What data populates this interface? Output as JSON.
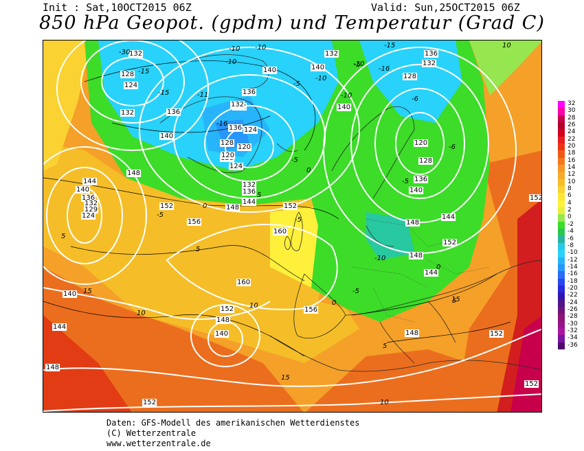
{
  "header": {
    "init": "Init : Sat,10OCT2015 06Z",
    "valid": "Valid: Sun,25OCT2015 06Z",
    "title": "850 hPa Geopot. (gpdm) und Temperatur (Grad C)"
  },
  "footer": {
    "line1": "Daten: GFS-Modell des amerikanischen Wetterdienstes",
    "line2": "(C) Wetterzentrale",
    "line3": "www.wetterzentrale.de"
  },
  "colorbar": {
    "levels": [
      "32",
      "30",
      "28",
      "26",
      "24",
      "22",
      "20",
      "18",
      "16",
      "14",
      "12",
      "10",
      "8",
      "6",
      "4",
      "2",
      "0",
      "-2",
      "-4",
      "-6",
      "-8",
      "-10",
      "-12",
      "-14",
      "-16",
      "-18",
      "-20",
      "-22",
      "-24",
      "-26",
      "-28",
      "-30",
      "-32",
      "-34",
      "-36"
    ],
    "colors": [
      "#ff00ff",
      "#ff00aa",
      "#c8004b",
      "#b4002d",
      "#d2001e",
      "#e61e1e",
      "#f03214",
      "#f05a14",
      "#f5781e",
      "#f59628",
      "#f5aa28",
      "#f5be28",
      "#fad232",
      "#ffe632",
      "#fff03c",
      "#e6f03c",
      "#96e650",
      "#3cdc28",
      "#28c850",
      "#28b4a0",
      "#28c8e6",
      "#28d2fa",
      "#28b4fa",
      "#2896fa",
      "#286efa",
      "#2846f0",
      "#2828dc",
      "#3214b4",
      "#50148c",
      "#6e1478",
      "#8c1473",
      "#96148c",
      "#aa14a0",
      "#7814a0",
      "#500a6e"
    ]
  },
  "map": {
    "geopotential_labels": [
      "132",
      "128",
      "124",
      "132",
      "136",
      "140",
      "136",
      "132",
      "140",
      "140",
      "136",
      "132",
      "128",
      "124",
      "120",
      "128",
      "124",
      "132",
      "120",
      "120",
      "128",
      "136",
      "148",
      "144",
      "140",
      "136",
      "132",
      "129",
      "124",
      "132",
      "136",
      "144",
      "140",
      "148",
      "152",
      "152",
      "156",
      "160",
      "160",
      "152",
      "148",
      "140",
      "144",
      "156",
      "148",
      "152",
      "152",
      "152",
      "152",
      "148",
      "140",
      "140",
      "144",
      "148",
      "152",
      "128",
      "132",
      "136",
      "148",
      "144"
    ],
    "temperature_labels": [
      "-30",
      "-15",
      "-10",
      "-10",
      "-10",
      "-15",
      "-16",
      "-15",
      "-11",
      "-5",
      "-10",
      "-10",
      "-16",
      "-5",
      "-10",
      "-5",
      "-6",
      "-6",
      "0",
      "0",
      "-5",
      "0",
      "5",
      "-5",
      "-10",
      "-5",
      "0",
      "5",
      "5",
      "10",
      "10",
      "15",
      "10",
      "10",
      "15",
      "5",
      "-5",
      "15",
      "5"
    ],
    "colors": {
      "cold_blue": "#28b4fa",
      "green": "#3cdc28",
      "yellow": "#fff03c",
      "orange": "#f5aa28",
      "red": "#d2001e"
    }
  }
}
